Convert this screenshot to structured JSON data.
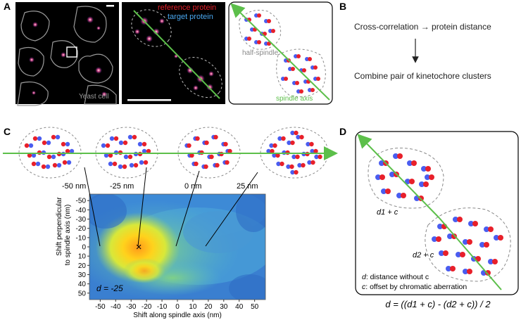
{
  "panel_labels": {
    "a": "A",
    "b": "B",
    "c": "C",
    "d": "D"
  },
  "panel_a": {
    "yeast_cell_label": "Yeast cell",
    "legend_reference": "reference protein",
    "legend_target": "target protein",
    "half_spindle_label": "half-spindle",
    "spindle_axis_label": "spindle axis"
  },
  "panel_b": {
    "step1": "Cross-correlation → protein distance",
    "step2": "Combine pair of kinetochore clusters"
  },
  "panel_c": {
    "shift_labels": [
      "-50 nm",
      "-25 nm",
      "0 nm",
      "25 nm"
    ],
    "d_annotation": "d = -25",
    "peak_marker": "×"
  },
  "panel_d": {
    "cluster1_label": "d1 + c",
    "cluster2_label": "d2 + c",
    "legend_d": "d: distance without c",
    "legend_c": "c: offset by chromatic aberration",
    "formula": "d = ((d1 + c) - (d2 + c)) / 2"
  },
  "colors": {
    "reference": "#e8202a",
    "target": "#4a5df0",
    "spindle_axis": "#5cbf4a",
    "outline": "#8a8a8a"
  },
  "chart_data": {
    "type": "heatmap",
    "title": "",
    "xlabel": "Shift along spindle axis (nm)",
    "ylabel": "Shift perpendicular to spindle axis (nm)",
    "x_ticks": [
      -50,
      -40,
      -30,
      -20,
      -10,
      0,
      10,
      20,
      30,
      40,
      50
    ],
    "y_ticks": [
      -50,
      -40,
      -30,
      -20,
      -10,
      0,
      10,
      20,
      30,
      40,
      50
    ],
    "xlim": [
      -57,
      57
    ],
    "ylim": [
      -57,
      57
    ],
    "peak": {
      "x": -25,
      "y": 0
    },
    "annotation": "d = -25"
  }
}
